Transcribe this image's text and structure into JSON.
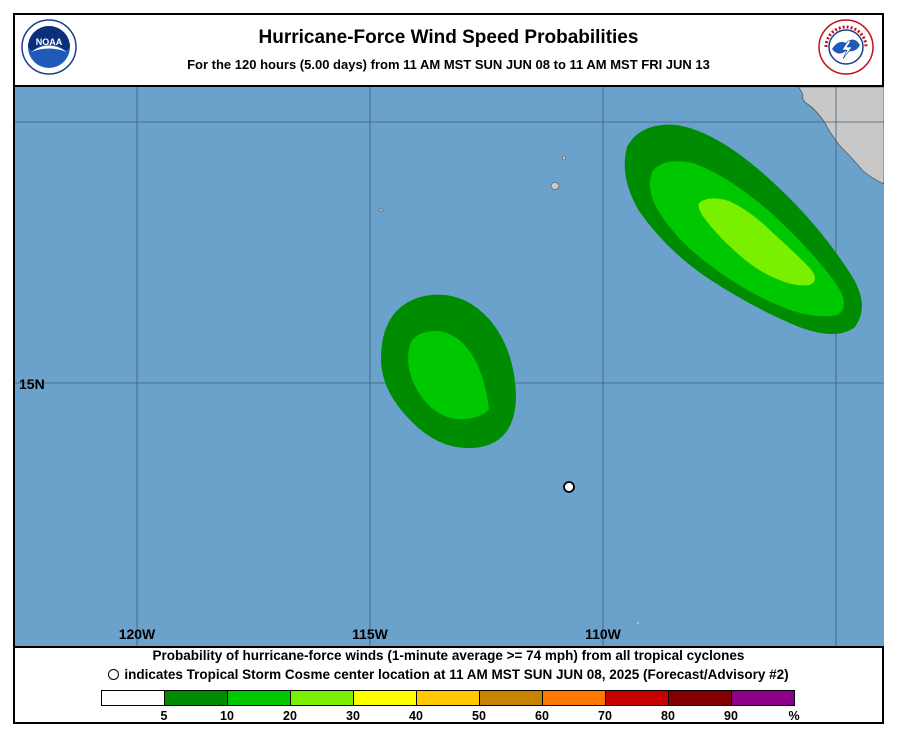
{
  "header": {
    "title": "Hurricane-Force Wind Speed Probabilities",
    "subtitle": "For the 120 hours (5.00 days) from 11 AM MST SUN JUN 08 to 11 AM MST FRI JUN 13",
    "left_logo": {
      "name": "noaa-logo",
      "text": "NOAA"
    },
    "right_logo": {
      "name": "national-weather-service-logo",
      "text": "NATIONAL WEATHER SERVICE"
    }
  },
  "map": {
    "ocean_color": "#6ba2cc",
    "land_color": "#c8c8c8",
    "lat_labels": [
      "15N"
    ],
    "lon_labels": [
      "120W",
      "115W",
      "110W"
    ],
    "storm_marker": {
      "type": "circle",
      "meaning": "Tropical Storm Cosme center location"
    }
  },
  "footer": {
    "line1": "Probability of hurricane-force winds (1-minute average >= 74 mph) from all tropical cyclones",
    "line2": "indicates Tropical Storm Cosme center location at 11 AM MST SUN JUN 08, 2025 (Forecast/Advisory #2)"
  },
  "legend": {
    "colors": [
      "#ffffff",
      "#008c00",
      "#00c800",
      "#78f000",
      "#ffff00",
      "#ffc800",
      "#c88200",
      "#ff7800",
      "#c80000",
      "#820000",
      "#8c008c"
    ],
    "ticks": [
      "5",
      "10",
      "20",
      "30",
      "40",
      "50",
      "60",
      "70",
      "80",
      "90",
      "%"
    ]
  }
}
